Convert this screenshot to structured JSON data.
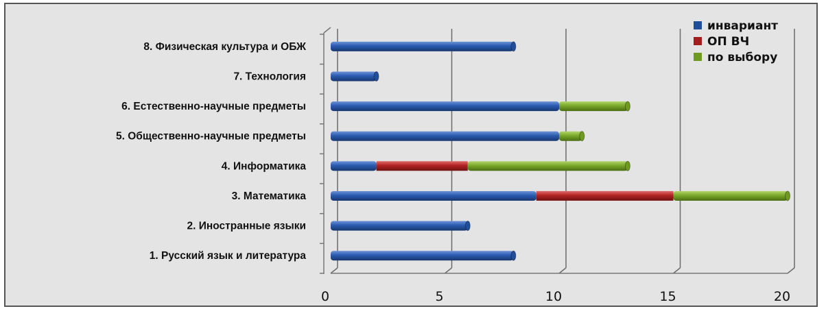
{
  "chart_data": {
    "type": "bar",
    "orientation": "horizontal",
    "stacked": true,
    "categories": [
      "1. Русский язык и литература",
      "2. Иностранные языки",
      "3. Математика",
      "4. Информатика",
      "5. Общественно-научные предметы",
      "6. Естественно-научные предметы",
      "7. Технология",
      "8. Физическая культура и ОБЖ"
    ],
    "series": [
      {
        "name": "инвариант",
        "color": "#1f4e9c",
        "values": [
          8,
          6,
          9,
          2,
          10,
          10,
          2,
          8
        ]
      },
      {
        "name": "ОП ВЧ",
        "color": "#a41c1c",
        "values": [
          0,
          0,
          6,
          4,
          0,
          0,
          0,
          0
        ]
      },
      {
        "name": "по выбору",
        "color": "#6e9a1e",
        "values": [
          0,
          0,
          5,
          7,
          1,
          3,
          0,
          0
        ]
      }
    ],
    "xlim": [
      0,
      20
    ],
    "xticks": [
      "0",
      "5",
      "10",
      "15",
      "20"
    ],
    "grid": true,
    "legend_position": "top-right"
  }
}
